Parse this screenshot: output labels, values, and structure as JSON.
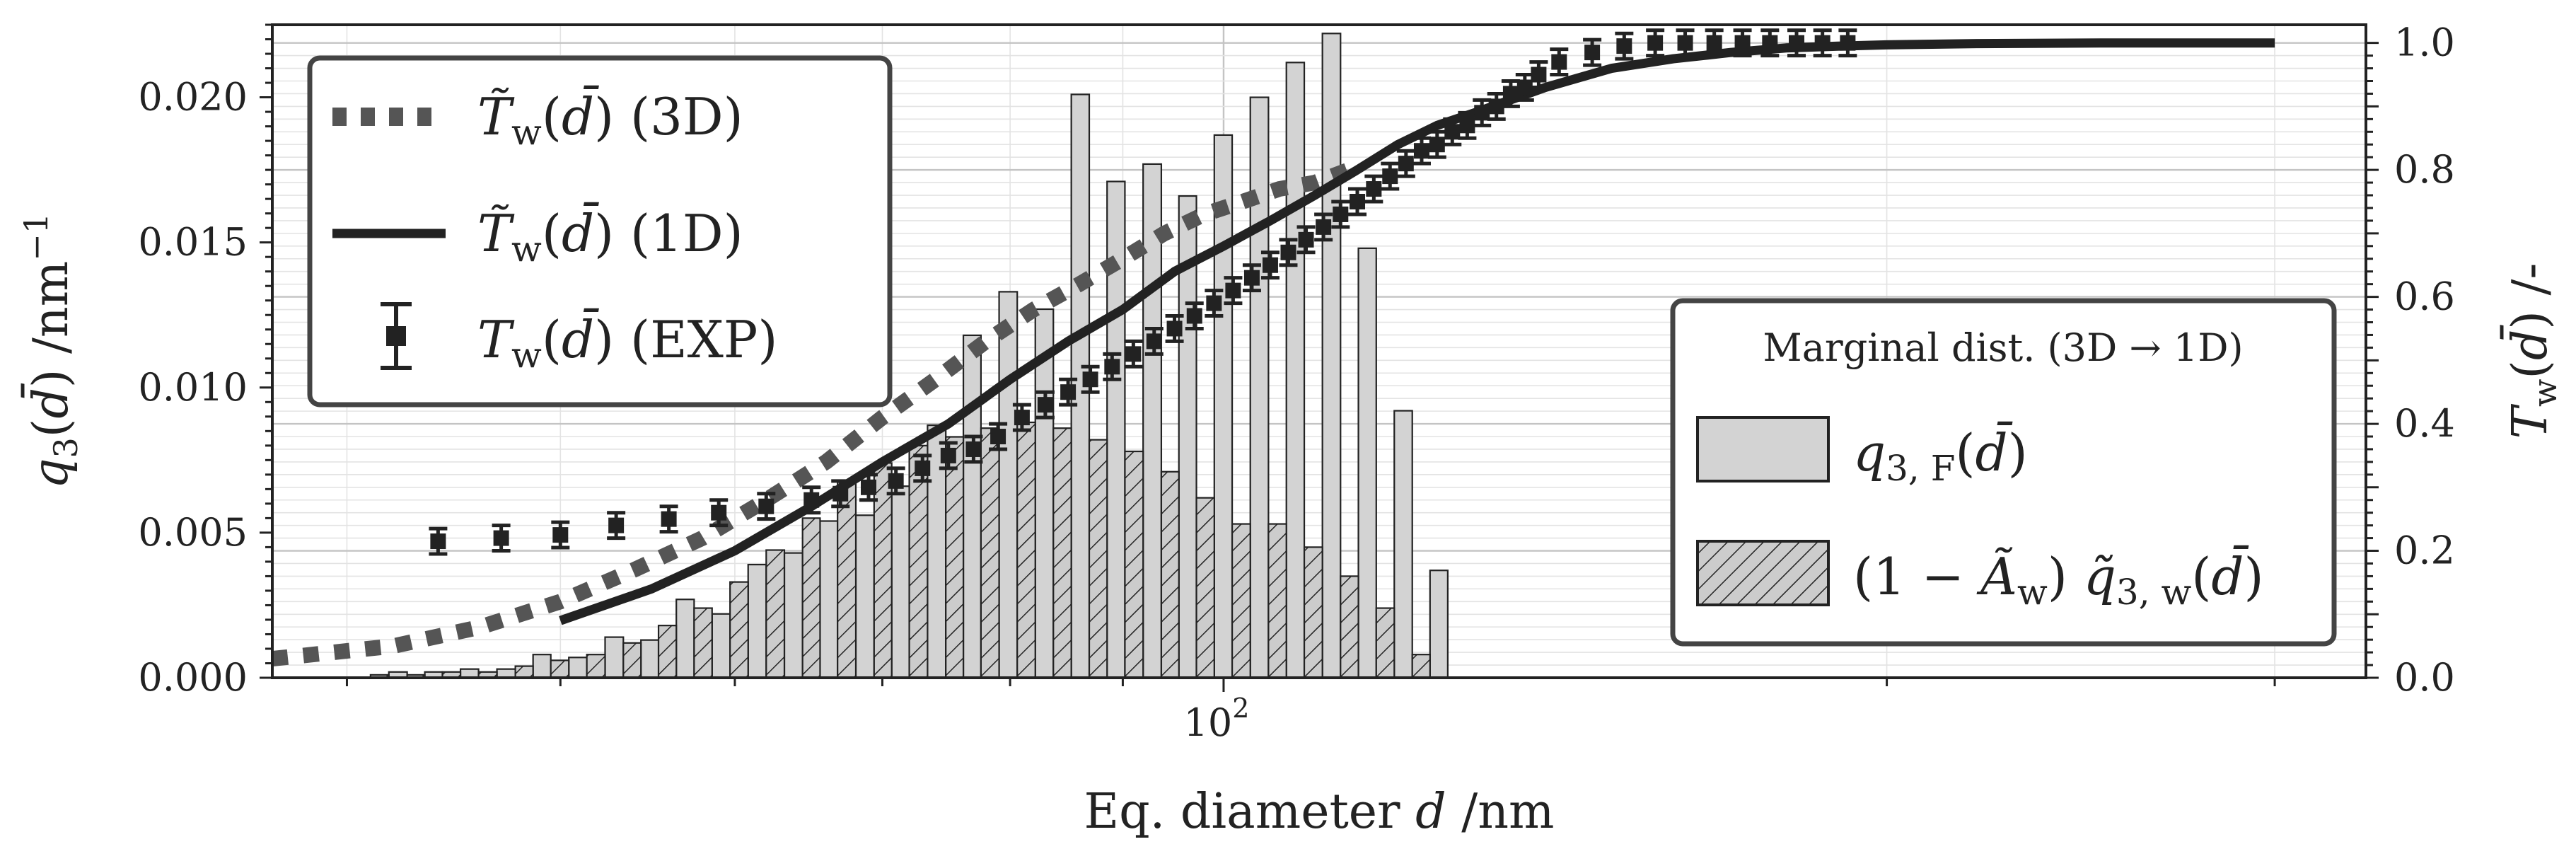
{
  "chart_data": {
    "type": "bar",
    "xlabel": "Eq. diameter d /nm",
    "ylabel_left": "q3(d̄) /nm⁻¹",
    "ylabel_right": "Tw(d̄) /-",
    "x_scale": "log",
    "xlim": [
      37,
      330
    ],
    "ylim_left": [
      0,
      0.0225
    ],
    "ylim_right": [
      0,
      1.0286
    ],
    "x_major_ticks": [
      {
        "value": 100,
        "label": "10",
        "exp": "2"
      }
    ],
    "y_left_ticks": [
      {
        "value": 0.0,
        "label": "0.000"
      },
      {
        "value": 0.005,
        "label": "0.005"
      },
      {
        "value": 0.01,
        "label": "0.010"
      },
      {
        "value": 0.015,
        "label": "0.015"
      },
      {
        "value": 0.02,
        "label": "0.020"
      }
    ],
    "y_right_ticks": [
      {
        "value": 0.0,
        "label": "0.0"
      },
      {
        "value": 0.2,
        "label": "0.2"
      },
      {
        "value": 0.4,
        "label": "0.4"
      },
      {
        "value": 0.6,
        "label": "0.6"
      },
      {
        "value": 0.8,
        "label": "0.8"
      },
      {
        "value": 1.0,
        "label": "1.0"
      }
    ],
    "grid": true,
    "bar_edges": [
      41,
      42.6,
      44.2,
      45.9,
      47.7,
      49.5,
      51.4,
      53.4,
      55.4,
      57.5,
      59.7,
      62,
      64.4,
      66.8,
      69.4,
      72,
      74.8,
      77.6,
      80.6,
      83.7,
      86.9,
      90.2,
      93.7,
      97.2,
      100.9,
      104.8,
      108.8,
      113,
      117.3,
      121.8,
      126.4
    ],
    "series": [
      {
        "name": "q3,F(d̄)",
        "kind": "bar",
        "color": "#d3d3d3",
        "values": [
          0.0002,
          0.0002,
          0.0003,
          0.0003,
          0.0008,
          0.0007,
          0.0014,
          0.0013,
          0.0027,
          0.0022,
          0.0039,
          0.0043,
          0.0054,
          0.0056,
          0.0066,
          0.0087,
          0.0118,
          0.0133,
          0.0127,
          0.0201,
          0.0171,
          0.0177,
          0.0166,
          0.0187,
          0.02,
          0.0212,
          0.0222,
          0.0148,
          0.0092,
          0.0037
        ]
      },
      {
        "name": "(1 − Ãw) q̃3,w(d̄)",
        "kind": "bar",
        "hatch": true,
        "color": "#cccccc",
        "values": [
          0.0001,
          0.0001,
          0.0002,
          0.0002,
          0.0004,
          0.0006,
          0.0008,
          0.0012,
          0.0018,
          0.0024,
          0.0033,
          0.0044,
          0.0055,
          0.0068,
          0.0074,
          0.008,
          0.0083,
          0.0086,
          0.0088,
          0.0086,
          0.0082,
          0.0078,
          0.0071,
          0.0062,
          0.0053,
          0.0053,
          0.0045,
          0.0035,
          0.0024,
          0.0008
        ]
      },
      {
        "name": "T̃w(d̄) (3D)",
        "kind": "line",
        "axis": "right",
        "style": "dotted",
        "color": "#555555",
        "x": [
          37,
          42,
          46,
          50,
          54,
          58,
          62,
          66,
          70,
          74,
          78,
          82,
          86,
          90,
          94,
          98,
          102,
          106,
          110,
          114
        ],
        "y": [
          0.03,
          0.05,
          0.08,
          0.12,
          0.17,
          0.22,
          0.28,
          0.34,
          0.41,
          0.47,
          0.53,
          0.58,
          0.62,
          0.66,
          0.7,
          0.73,
          0.75,
          0.77,
          0.78,
          0.8
        ]
      },
      {
        "name": "T̃w(d̄) (1D)",
        "kind": "line",
        "axis": "right",
        "style": "solid",
        "color": "#222222",
        "x": [
          50,
          55,
          60,
          65,
          70,
          75,
          80,
          85,
          90,
          95,
          100,
          105,
          110,
          115,
          120,
          125,
          130,
          140,
          150,
          160,
          170,
          180,
          190,
          200,
          220,
          250,
          280,
          300
        ],
        "y": [
          0.09,
          0.14,
          0.2,
          0.27,
          0.34,
          0.4,
          0.47,
          0.53,
          0.58,
          0.64,
          0.68,
          0.72,
          0.76,
          0.8,
          0.84,
          0.87,
          0.89,
          0.93,
          0.96,
          0.975,
          0.985,
          0.992,
          0.995,
          0.997,
          0.999,
          1.0,
          1.0,
          1.0
        ]
      },
      {
        "name": "Tw(d̄) (EXP)",
        "kind": "errorbar",
        "axis": "right",
        "color": "#222222",
        "x": [
          44,
          47,
          50,
          53,
          56,
          59,
          62,
          65,
          67,
          69,
          71,
          73,
          75,
          77,
          79,
          81,
          83,
          85,
          87,
          89,
          91,
          93,
          95,
          97,
          99,
          101,
          103,
          105,
          107,
          109,
          111,
          113,
          115,
          117,
          119,
          121,
          123,
          125,
          127,
          129,
          131,
          133,
          135,
          137,
          139,
          142,
          147,
          152,
          157,
          162,
          167,
          172,
          177,
          182,
          187,
          192
        ],
        "y": [
          0.215,
          0.22,
          0.225,
          0.24,
          0.25,
          0.26,
          0.27,
          0.28,
          0.29,
          0.3,
          0.31,
          0.33,
          0.35,
          0.36,
          0.38,
          0.41,
          0.43,
          0.45,
          0.47,
          0.49,
          0.51,
          0.53,
          0.55,
          0.57,
          0.59,
          0.61,
          0.63,
          0.65,
          0.67,
          0.69,
          0.71,
          0.73,
          0.75,
          0.77,
          0.79,
          0.81,
          0.83,
          0.84,
          0.86,
          0.87,
          0.89,
          0.9,
          0.92,
          0.93,
          0.95,
          0.97,
          0.985,
          0.995,
          1.0,
          1.0,
          1.0,
          1.0,
          1.0,
          1.0,
          1.0,
          1.0
        ],
        "err": 0.02
      }
    ],
    "legend_left": {
      "placement": "top-left",
      "entries": [
        {
          "math": "T̃",
          "sub": "w",
          "arg": "(d̄)",
          "suffix": "(3D)"
        },
        {
          "math": "T̃",
          "sub": "w",
          "arg": "(d̄)",
          "suffix": "(1D)"
        },
        {
          "math": "T",
          "sub": "w",
          "arg": "(d̄)",
          "suffix": "(EXP)"
        }
      ]
    },
    "legend_right": {
      "placement": "center-right",
      "title": "Marginal dist. (3D → 1D)",
      "entries": [
        {
          "pre": "",
          "math": "q",
          "sub": "3, F",
          "arg": "(d̄)"
        },
        {
          "pre": "(1 − ",
          "math2": "Ã",
          "sub2": "w",
          "mid": ") ",
          "math": "q̃",
          "sub": "3, w",
          "arg": "(d̄)"
        }
      ]
    },
    "colors": {
      "frame": "#222222",
      "bar_fill": "#d3d3d3",
      "text": "#222222"
    }
  }
}
